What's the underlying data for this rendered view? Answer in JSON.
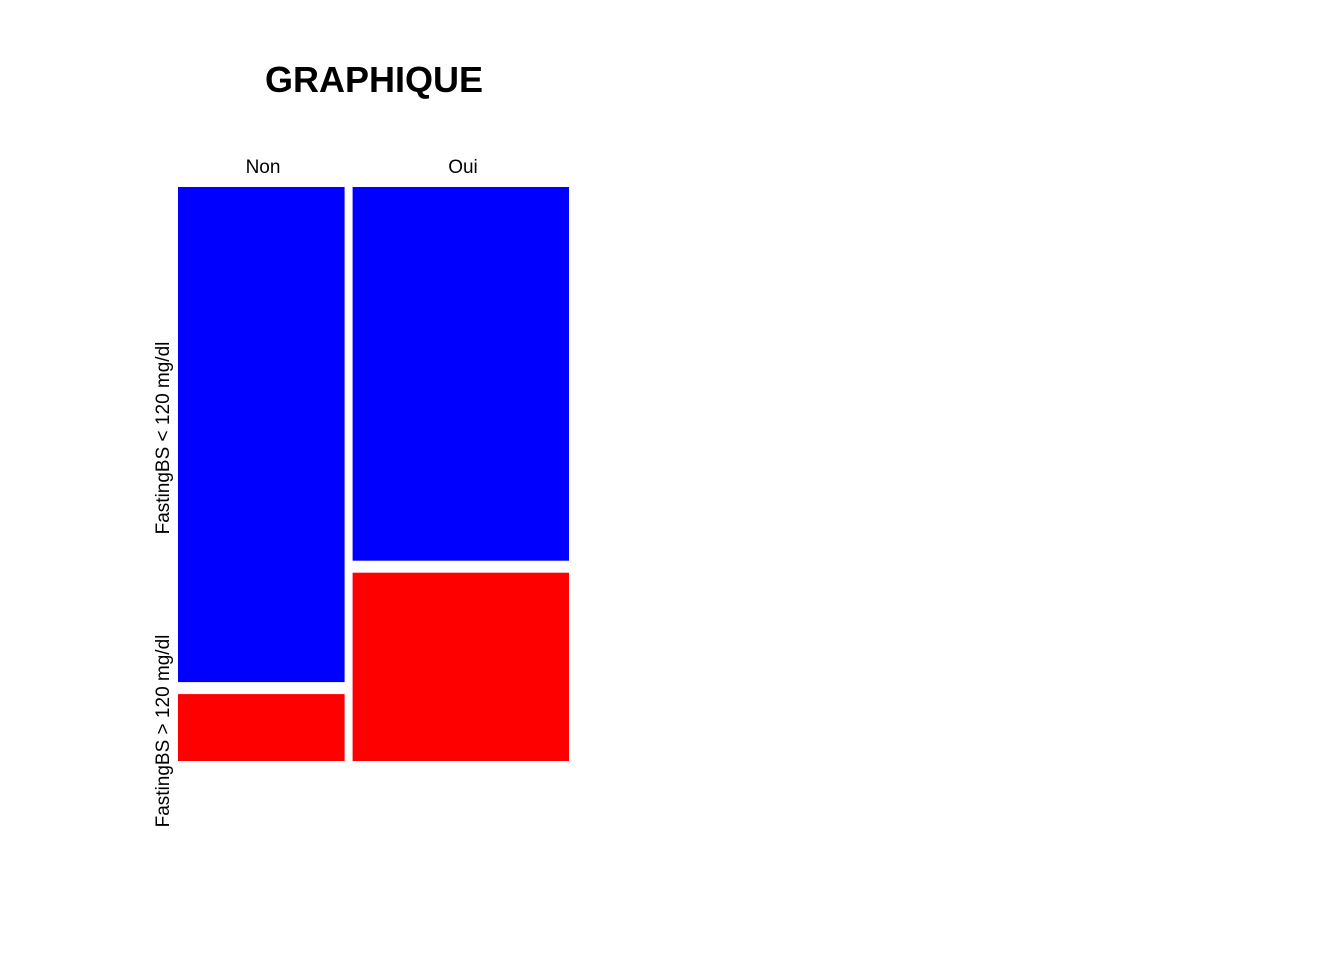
{
  "chart_data": {
    "type": "mosaic",
    "title": "GRAPHIQUE",
    "columns": [
      {
        "label": "Non",
        "share": 0.435,
        "segments": [
          {
            "label": "FastingBS < 120 mg/dl",
            "share": 0.881,
            "color": "#0000FF"
          },
          {
            "label": "FastingBS > 120 mg/dl",
            "share": 0.119,
            "color": "#FF0000"
          }
        ]
      },
      {
        "label": "Oui",
        "share": 0.565,
        "segments": [
          {
            "label": "FastingBS < 120 mg/dl",
            "share": 0.665,
            "color": "#0000FF"
          },
          {
            "label": "FastingBS > 120 mg/dl",
            "share": 0.335,
            "color": "#FF0000"
          }
        ]
      }
    ],
    "row_labels": [
      "FastingBS < 120 mg/dl",
      "FastingBS > 120 mg/dl"
    ],
    "colors": {
      "low": "#0000FF",
      "high": "#FF0000",
      "background": "#FFFFFF"
    }
  }
}
